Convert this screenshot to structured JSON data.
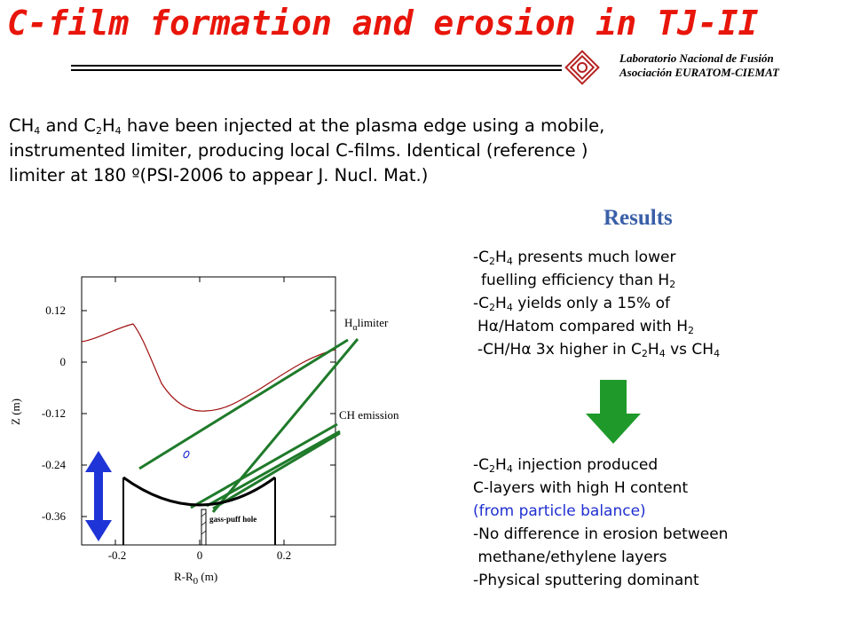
{
  "title": "C-film formation and erosion in TJ-II",
  "org_line1": "Laboratorio Nacional de Fusión",
  "org_line2": "Asociación EURATOM-CIEMAT",
  "intro": {
    "line1": {
      "a": "CH",
      "s1": "4",
      "b": " and C",
      "s2": "2",
      "c": "H",
      "s3": "4",
      "d": " have been injected at the plasma edge using a mobile,"
    },
    "line2": "instrumented limiter, producing local C-films. Identical (reference )",
    "line3": "limiter at 180 º(PSI-2006 to appear J. Nucl. Mat.)"
  },
  "results_heading": "Results",
  "results": {
    "l1": {
      "a": "-C",
      "s1": "2",
      "b": "H",
      "s2": "4",
      "c": " presents much lower"
    },
    "l2": {
      "a": "fuelling efficiency than H",
      "s1": "2"
    },
    "l3": {
      "a": "-C",
      "s1": "2",
      "b": "H",
      "s2": "4",
      "c": " yields only a 15% of"
    },
    "l4": {
      "a": "H",
      "g": "α",
      "b": "/Hatom  compared with H",
      "s1": "2"
    },
    "l5": {
      "a": "-CH/H",
      "g": "α",
      "b": " 3x higher in C",
      "s1": "2",
      "c": "H",
      "s2": "4",
      "d": " vs CH",
      "s3": "4"
    }
  },
  "conclusions": {
    "l1": {
      "a": "-C",
      "s1": "2",
      "b": "H",
      "s2": "4",
      "c": " injection produced"
    },
    "l2": "C-layers with high H content",
    "l3": "(from particle balance)",
    "l4": "-No difference in erosion between",
    "l5": " methane/ethylene layers",
    "l6": "-Physical sputtering dominant"
  },
  "plot": {
    "y_axis_label": "Z (m)",
    "x_axis_label_main": "R-R",
    "x_axis_label_sub": "0",
    "x_axis_label_unit": " (m)",
    "y_ticks": [
      "0.12",
      "0",
      "-0.12",
      "-0.24",
      "-0.36"
    ],
    "x_ticks": [
      "-0.2",
      "0",
      "0.2"
    ],
    "label_halpha_main": "H",
    "label_halpha_greek": "α",
    "label_halpha_rest": "limiter",
    "label_ch": "CH emission",
    "label_gas": "gass-puff hole"
  },
  "colors": {
    "title": "#e8150a",
    "results_heading": "#3a5fa8",
    "highlight_text": "#1f2fd0",
    "sightlines": "#1f7a2a",
    "motion_arrow": "#1f34d6",
    "down_arrow": "#1f9a2a",
    "logo": "#b52020"
  }
}
